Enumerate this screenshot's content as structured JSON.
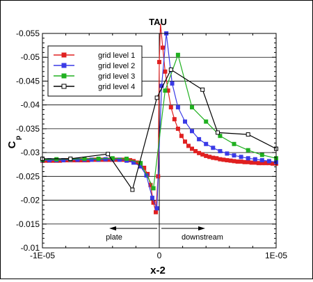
{
  "chart_data": {
    "type": "line",
    "title": "TAU",
    "xlabel": "x-2",
    "ylabel_main": "C",
    "ylabel_sub": "p",
    "xlim": [
      -1e-05,
      1e-05
    ],
    "ylim": [
      -0.01,
      -0.055
    ],
    "y_inverted": true,
    "grid": "horizontal",
    "legend_position": "top-left",
    "xticks": [
      -1e-05,
      0,
      1e-05
    ],
    "xtick_labels": [
      "-1E-05",
      "0",
      "1E-05"
    ],
    "yticks": [
      -0.055,
      -0.05,
      -0.045,
      -0.04,
      -0.035,
      -0.03,
      -0.025,
      -0.02,
      -0.015,
      -0.01
    ],
    "ytick_labels": [
      "-0.055",
      "-0.05",
      "-0.045",
      "-0.04",
      "-0.035",
      "-0.03",
      "-0.025",
      "-0.02",
      "-0.015",
      "-0.01"
    ],
    "annotations": {
      "plate": "plate",
      "downstream": "downstream"
    },
    "series": [
      {
        "name": "grid level 1",
        "color": "#e02020",
        "marker": "square-filled",
        "x": [
          -1e-05,
          -9.7e-06,
          -9.4e-06,
          -9.1e-06,
          -8.8e-06,
          -8.5e-06,
          -8.2e-06,
          -7.9e-06,
          -7.6e-06,
          -7.3e-06,
          -7e-06,
          -6.7e-06,
          -6.4e-06,
          -6.1e-06,
          -5.8e-06,
          -5.5e-06,
          -5.2e-06,
          -4.9e-06,
          -4.6e-06,
          -4.3e-06,
          -4e-06,
          -3.7e-06,
          -3.4e-06,
          -3.1e-06,
          -2.8e-06,
          -2.5e-06,
          -2.2e-06,
          -1.9e-06,
          -1.6e-06,
          -1.3e-06,
          -1e-06,
          -7.5e-07,
          -5e-07,
          -3e-07,
          -1e-07,
          0.0,
          1e-07,
          3e-07,
          5e-07,
          7.5e-07,
          1e-06,
          1.3e-06,
          1.6e-06,
          1.9e-06,
          2.2e-06,
          2.5e-06,
          2.8e-06,
          3.1e-06,
          3.4e-06,
          3.7e-06,
          4e-06,
          4.3e-06,
          4.6e-06,
          4.9e-06,
          5.2e-06,
          5.5e-06,
          5.8e-06,
          6.1e-06,
          6.4e-06,
          6.7e-06,
          7e-06,
          7.3e-06,
          7.6e-06,
          7.9e-06,
          8.2e-06,
          8.5e-06,
          8.8e-06,
          9.1e-06,
          9.4e-06,
          9.7e-06,
          1e-05
        ],
        "y": [
          -0.0283,
          -0.0283,
          -0.0283,
          -0.0283,
          -0.0283,
          -0.0283,
          -0.0284,
          -0.0284,
          -0.0284,
          -0.0284,
          -0.0284,
          -0.0284,
          -0.0284,
          -0.0284,
          -0.0285,
          -0.0285,
          -0.0285,
          -0.0285,
          -0.0285,
          -0.0285,
          -0.0285,
          -0.0285,
          -0.0285,
          -0.0285,
          -0.0285,
          -0.0284,
          -0.0282,
          -0.0279,
          -0.0275,
          -0.0268,
          -0.0255,
          -0.0232,
          -0.0195,
          -0.0175,
          -0.025,
          -0.049,
          -0.057,
          -0.052,
          -0.047,
          -0.043,
          -0.0395,
          -0.037,
          -0.035,
          -0.0335,
          -0.0323,
          -0.0314,
          -0.0308,
          -0.0303,
          -0.0299,
          -0.0296,
          -0.0293,
          -0.0291,
          -0.0289,
          -0.0288,
          -0.0286,
          -0.0285,
          -0.0284,
          -0.0283,
          -0.0282,
          -0.0281,
          -0.0281,
          -0.028,
          -0.028,
          -0.0279,
          -0.0279,
          -0.0278,
          -0.0278,
          -0.0278,
          -0.0278,
          -0.0277,
          -0.0277
        ]
      },
      {
        "name": "grid level 2",
        "color": "#3a3ae6",
        "marker": "square-filled",
        "x": [
          -1e-05,
          -9.4e-06,
          -8.8e-06,
          -8.2e-06,
          -7.6e-06,
          -7e-06,
          -6.4e-06,
          -5.8e-06,
          -5.2e-06,
          -4.6e-06,
          -4e-06,
          -3.4e-06,
          -2.8e-06,
          -2.2e-06,
          -1.6e-06,
          -1.1e-06,
          -6e-07,
          -2e-07,
          2e-07,
          6e-07,
          1.1e-06,
          1.6e-06,
          2.2e-06,
          2.8e-06,
          3.4e-06,
          4e-06,
          4.6e-06,
          5.2e-06,
          5.8e-06,
          6.4e-06,
          7e-06,
          7.6e-06,
          8.2e-06,
          8.8e-06,
          9.4e-06,
          1e-05
        ],
        "y": [
          -0.0284,
          -0.0284,
          -0.0284,
          -0.0284,
          -0.0285,
          -0.0285,
          -0.0285,
          -0.0285,
          -0.0285,
          -0.0286,
          -0.0286,
          -0.0285,
          -0.0283,
          -0.0279,
          -0.0271,
          -0.0252,
          -0.0205,
          -0.0183,
          -0.044,
          -0.055,
          -0.0445,
          -0.0395,
          -0.0365,
          -0.0345,
          -0.0328,
          -0.0318,
          -0.031,
          -0.0303,
          -0.0298,
          -0.0294,
          -0.0291,
          -0.0288,
          -0.0286,
          -0.0284,
          -0.0282,
          -0.028
        ]
      },
      {
        "name": "grid level 3",
        "color": "#20b020",
        "marker": "square-filled",
        "x": [
          -1e-05,
          -8.8e-06,
          -7.6e-06,
          -6.4e-06,
          -5.2e-06,
          -4e-06,
          -2.8e-06,
          -1.6e-06,
          -5e-07,
          5e-07,
          1.6e-06,
          2.8e-06,
          4e-06,
          5.2e-06,
          6.4e-06,
          7.6e-06,
          8.8e-06,
          1e-05
        ],
        "y": [
          -0.0285,
          -0.0286,
          -0.0286,
          -0.0287,
          -0.0287,
          -0.0288,
          -0.0287,
          -0.0278,
          -0.0225,
          -0.043,
          -0.0505,
          -0.0395,
          -0.0365,
          -0.0335,
          -0.0318,
          -0.0305,
          -0.0295,
          -0.0288
        ]
      },
      {
        "name": "grid level 4",
        "color": "#000000",
        "marker": "square-open",
        "x": [
          -1e-05,
          -7.6e-06,
          -4.4e-06,
          -2.3e-06,
          -2e-07,
          1e-06,
          3.7e-06,
          5e-06,
          7.6e-06,
          1e-05
        ],
        "y": [
          -0.0287,
          -0.0287,
          -0.0297,
          -0.0222,
          -0.0415,
          -0.0474,
          -0.0432,
          -0.0342,
          -0.0338,
          -0.0308
        ]
      }
    ]
  }
}
